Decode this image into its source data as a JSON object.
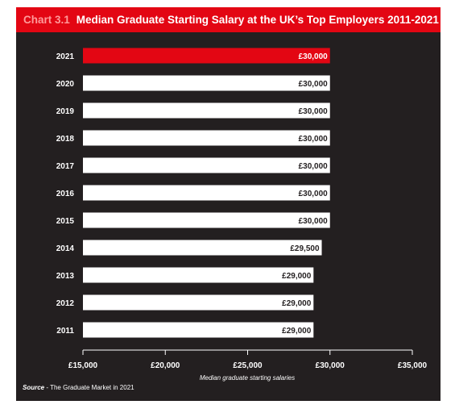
{
  "header": {
    "chart_label": "Chart 3.1",
    "title": "Median Graduate Starting Salary at the UK’s Top Employers 2011-2021"
  },
  "source": {
    "label": "Source",
    "text": " - The Graduate Market in 2021"
  },
  "colors": {
    "background": "#231f20",
    "title_bar": "#e30613",
    "highlight_bar": "#e30613",
    "bar": "#ffffff",
    "text_light": "#ffffff",
    "text_dark": "#231f20"
  },
  "chart_data": {
    "type": "bar",
    "orientation": "horizontal",
    "categories": [
      "2021",
      "2020",
      "2019",
      "2018",
      "2017",
      "2016",
      "2015",
      "2014",
      "2013",
      "2012",
      "2011"
    ],
    "values": [
      30000,
      30000,
      30000,
      30000,
      30000,
      30000,
      30000,
      29500,
      29000,
      29000,
      29000
    ],
    "data_labels": [
      "£30,000",
      "£30,000",
      "£30,000",
      "£30,000",
      "£30,000",
      "£30,000",
      "£30,000",
      "£29,500",
      "£29,000",
      "£29,000",
      "£29,000"
    ],
    "highlight_category": "2021",
    "xlabel": "Median graduate starting salaries",
    "ylabel": "",
    "xlim": [
      15000,
      35000
    ],
    "xticks": [
      15000,
      20000,
      25000,
      30000,
      35000
    ],
    "xtick_labels": [
      "£15,000",
      "£20,000",
      "£25,000",
      "£30,000",
      "£35,000"
    ],
    "grid": false,
    "legend": "none"
  }
}
